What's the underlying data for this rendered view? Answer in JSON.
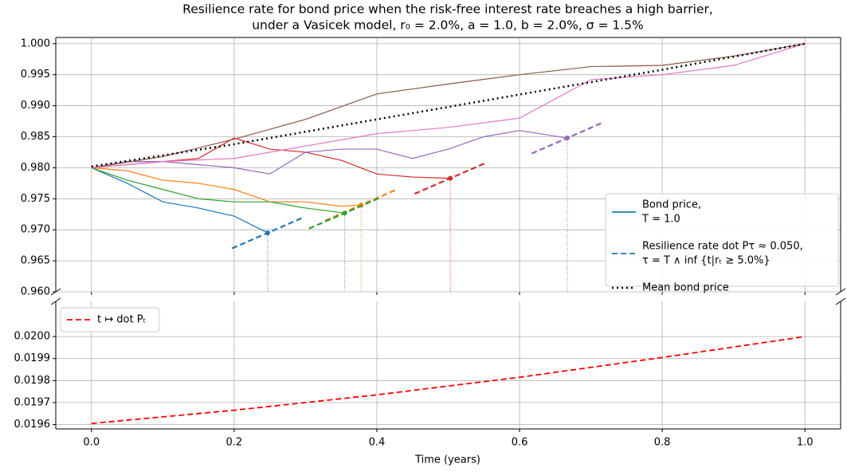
{
  "chart_data": [
    {
      "type": "line",
      "title": [
        "Resilience rate for bond price when the risk-free interest rate breaches a high barrier,",
        "under a Vasicek model, r₀ = 2.0%, a = 1.0, b = 2.0%, σ = 1.5%"
      ],
      "xlim": [
        -0.05,
        1.05
      ],
      "ylim": [
        0.96,
        1.001
      ],
      "grid": true,
      "yticks": [
        {
          "value": 0.96,
          "label": "0.960"
        },
        {
          "value": 0.965,
          "label": "0.965"
        },
        {
          "value": 0.97,
          "label": "0.970"
        },
        {
          "value": 0.975,
          "label": "0.975"
        },
        {
          "value": 0.98,
          "label": "0.980"
        },
        {
          "value": 0.985,
          "label": "0.985"
        },
        {
          "value": 0.99,
          "label": "0.990"
        },
        {
          "value": 0.995,
          "label": "0.995"
        },
        {
          "value": 1.0,
          "label": "1.000"
        }
      ],
      "xticks": [
        {
          "value": 0,
          "label": "0.0"
        },
        {
          "value": 0.2,
          "label": "0.2"
        },
        {
          "value": 0.4,
          "label": "0.4"
        },
        {
          "value": 0.6,
          "label": "0.6"
        },
        {
          "value": 0.8,
          "label": "0.8"
        },
        {
          "value": 1.0,
          "label": "1.0"
        }
      ],
      "paths": [
        {
          "color": "#1f77b4",
          "x": [
            0,
            0.05,
            0.1,
            0.15,
            0.2,
            0.247
          ],
          "values": [
            0.98,
            0.9775,
            0.9745,
            0.9735,
            0.9722,
            0.9695
          ]
        },
        {
          "color": "#ff7f0e",
          "x": [
            0,
            0.05,
            0.1,
            0.15,
            0.2,
            0.25,
            0.3,
            0.35,
            0.378
          ],
          "values": [
            0.98,
            0.9795,
            0.978,
            0.9775,
            0.9765,
            0.9745,
            0.9745,
            0.9738,
            0.974
          ]
        },
        {
          "color": "#2ca02c",
          "x": [
            0,
            0.05,
            0.1,
            0.15,
            0.2,
            0.25,
            0.3,
            0.355
          ],
          "values": [
            0.98,
            0.978,
            0.9765,
            0.975,
            0.9745,
            0.9745,
            0.9735,
            0.9727
          ]
        },
        {
          "color": "#d62728",
          "x": [
            0,
            0.05,
            0.1,
            0.15,
            0.2,
            0.25,
            0.3,
            0.35,
            0.4,
            0.45,
            0.503
          ],
          "values": [
            0.98,
            0.9805,
            0.981,
            0.9815,
            0.9848,
            0.983,
            0.9825,
            0.9812,
            0.979,
            0.9785,
            0.9783
          ]
        },
        {
          "color": "#9467bd",
          "x": [
            0,
            0.05,
            0.1,
            0.15,
            0.2,
            0.25,
            0.3,
            0.35,
            0.4,
            0.45,
            0.5,
            0.55,
            0.6,
            0.667
          ],
          "values": [
            0.98,
            0.981,
            0.981,
            0.9805,
            0.98,
            0.979,
            0.9825,
            0.983,
            0.983,
            0.9815,
            0.983,
            0.985,
            0.986,
            0.9848
          ]
        },
        {
          "color": "#8c564b",
          "x": [
            0,
            0.1,
            0.2,
            0.3,
            0.4,
            0.5,
            0.6,
            0.7,
            0.8,
            0.9,
            1.0
          ],
          "values": [
            0.98,
            0.9818,
            0.9846,
            0.9878,
            0.9919,
            0.9935,
            0.995,
            0.9963,
            0.9965,
            0.998,
            1.0
          ]
        },
        {
          "color": "#e377c2",
          "x": [
            0,
            0.1,
            0.2,
            0.3,
            0.4,
            0.5,
            0.6,
            0.7,
            0.8,
            0.9,
            1.0
          ],
          "values": [
            0.98,
            0.981,
            0.9815,
            0.9835,
            0.9855,
            0.9865,
            0.988,
            0.9942,
            0.995,
            0.9965,
            1.0
          ]
        }
      ],
      "stops": [
        {
          "color": "#1f77b4",
          "x": 0.247,
          "value": 0.9695,
          "tangent_x": [
            0.197,
            0.297
          ],
          "tangent_values": [
            0.967,
            0.972
          ]
        },
        {
          "color": "#ff7f0e",
          "x": 0.378,
          "value": 0.974,
          "tangent_x": [
            0.328,
            0.428
          ],
          "tangent_values": [
            0.9715,
            0.9765
          ]
        },
        {
          "color": "#2ca02c",
          "x": 0.355,
          "value": 0.9727,
          "tangent_x": [
            0.305,
            0.405
          ],
          "tangent_values": [
            0.9702,
            0.9752
          ]
        },
        {
          "color": "#d62728",
          "x": 0.503,
          "value": 0.9783,
          "tangent_x": [
            0.453,
            0.553
          ],
          "tangent_values": [
            0.9758,
            0.9808
          ]
        },
        {
          "color": "#9467bd",
          "x": 0.667,
          "value": 0.9848,
          "tangent_x": [
            0.617,
            0.717
          ],
          "tangent_values": [
            0.9823,
            0.9873
          ]
        }
      ],
      "mean": {
        "color": "#000000",
        "x": [
          0,
          0.2,
          0.4,
          0.6,
          0.8,
          1.0
        ],
        "values": [
          0.9802,
          0.9838,
          0.9878,
          0.9918,
          0.9958,
          1.0
        ]
      },
      "legend": {
        "position": "lower right",
        "entries": [
          {
            "label": [
              "Bond price,",
              "T = 1.0"
            ],
            "color": "#1f77b4",
            "style": "solid"
          },
          {
            "label": [
              "Resilience rate dot Pτ  ≈  0.050,",
              "τ = T ∧ inf {t|rₜ ≥ 5.0%}"
            ],
            "color": "#1f77b4",
            "style": "dashed"
          },
          {
            "label": [
              "Mean bond price"
            ],
            "color": "#000000",
            "style": "dotted"
          }
        ]
      }
    },
    {
      "type": "line",
      "xlabel": "Time (years)",
      "xlim": [
        -0.05,
        1.05
      ],
      "ylim": [
        0.01958,
        0.02016
      ],
      "grid": true,
      "yticks": [
        {
          "value": 0.0196,
          "label": "0.0196"
        },
        {
          "value": 0.0197,
          "label": "0.0197"
        },
        {
          "value": 0.0198,
          "label": "0.0198"
        },
        {
          "value": 0.0199,
          "label": "0.0199"
        },
        {
          "value": 0.02,
          "label": "0.0200"
        }
      ],
      "xticks": [
        {
          "value": 0,
          "label": "0.0"
        },
        {
          "value": 0.2,
          "label": "0.2"
        },
        {
          "value": 0.4,
          "label": "0.4"
        },
        {
          "value": 0.6,
          "label": "0.6"
        },
        {
          "value": 0.8,
          "label": "0.8"
        },
        {
          "value": 1.0,
          "label": "1.0"
        }
      ],
      "series": [
        {
          "name": "t ↦ dot Pₜ",
          "color": "#ff0000",
          "x": [
            0,
            0.2,
            0.4,
            0.6,
            0.8,
            1.0
          ],
          "values": [
            0.019605,
            0.019665,
            0.019735,
            0.019815,
            0.019905,
            0.02
          ]
        }
      ],
      "legend": {
        "position": "upper left"
      }
    }
  ]
}
